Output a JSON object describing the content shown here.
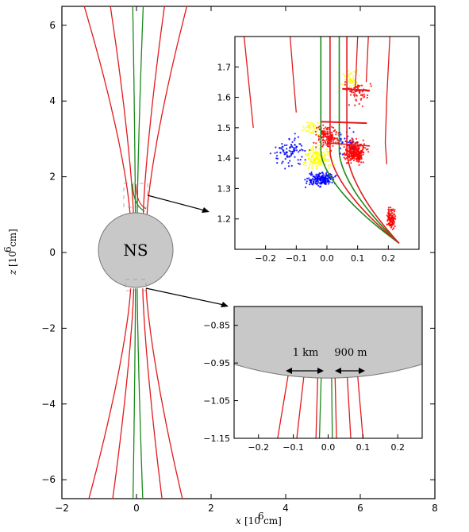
{
  "chart_data": [
    {
      "type": "line",
      "panel": "main",
      "xlabel": "x [10^6 cm]",
      "ylabel": "z [10^6 cm]",
      "xlim": [
        -2,
        8
      ],
      "ylim": [
        -6.5,
        6.5
      ],
      "xticks": [
        "−2",
        "0",
        "2",
        "4",
        "6",
        "8"
      ],
      "yticks": [
        "6",
        "4",
        "2",
        "0",
        "−2",
        "−4",
        "−6"
      ],
      "star_label": "NS",
      "star_radius": 1.0,
      "field_lines_red": [
        {
          "x0": -0.17,
          "x_top": -1.4
        },
        {
          "x0": -0.08,
          "x_top": -0.7
        },
        {
          "x0": 0.18,
          "x_top": 0.75
        },
        {
          "x0": 0.28,
          "x_top": 1.35
        }
      ],
      "field_lines_green": [
        {
          "x0": -0.03,
          "x_top": -0.1
        },
        {
          "x0": 0.02,
          "x_top": 0.18
        }
      ],
      "colors": {
        "red": "#e31a1c",
        "green": "#1a8a1a",
        "star": "#c8c8c8"
      }
    },
    {
      "type": "scatter",
      "panel": "inset-top",
      "xlim": [
        -0.3,
        0.3
      ],
      "ylim": [
        1.1,
        1.8
      ],
      "xticks": [
        "−0.2",
        "−0.1",
        "0.0",
        "0.1",
        "0.2"
      ],
      "yticks": [
        "1.7",
        "1.6",
        "1.5",
        "1.4",
        "1.3",
        "1.2"
      ],
      "series_colors": [
        "#0000ff",
        "#ffff00",
        "#ff0000"
      ]
    },
    {
      "type": "line",
      "panel": "inset-bottom",
      "xlim": [
        -0.27,
        0.27
      ],
      "ylim": [
        -1.15,
        -0.8
      ],
      "xticks": [
        "−0.2",
        "−0.1",
        "0.0",
        "0.1",
        "0.2"
      ],
      "yticks": [
        "−0.85",
        "−0.95",
        "−1.05",
        "−1.15"
      ],
      "annotations": [
        "1 km",
        "900 m"
      ]
    }
  ]
}
